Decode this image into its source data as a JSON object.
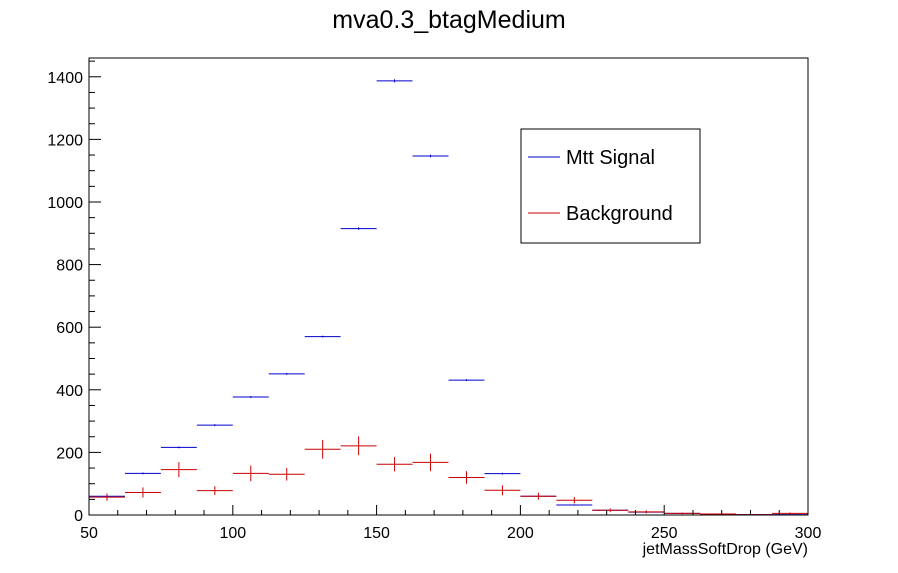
{
  "chart_data": {
    "type": "histogram",
    "title": "mva0.3_btagMedium",
    "xlabel": "jetMassSoftDrop (GeV)",
    "ylabel": "",
    "xlim": [
      50,
      300
    ],
    "ylim": [
      0,
      1460
    ],
    "x_ticks": [
      50,
      100,
      150,
      200,
      250,
      300
    ],
    "y_ticks": [
      0,
      200,
      400,
      600,
      800,
      1000,
      1200,
      1400
    ],
    "bin_width": 12.5,
    "bin_centers": [
      56.25,
      68.75,
      81.25,
      93.75,
      106.25,
      118.75,
      131.25,
      143.75,
      156.25,
      168.75,
      181.25,
      193.75,
      206.25,
      218.75,
      231.25,
      243.75,
      256.25,
      268.75,
      281.25,
      293.75
    ],
    "legend_position": "top-right",
    "grid": false,
    "series": [
      {
        "name": "Mtt Signal",
        "color": "#0000cc",
        "values": [
          60,
          133,
          216,
          287,
          377,
          451,
          570,
          915,
          1387,
          1147,
          431,
          132,
          60,
          32,
          15,
          9,
          5,
          3,
          1,
          1
        ],
        "errors": [
          2,
          3,
          3,
          3,
          3,
          3,
          3,
          4,
          5,
          4,
          3,
          3,
          2,
          2,
          1,
          1,
          1,
          1,
          1,
          1
        ]
      },
      {
        "name": "Background",
        "color": "#cc0000",
        "values": [
          57,
          72,
          145,
          78,
          133,
          130,
          210,
          221,
          162,
          168,
          120,
          79,
          60,
          47,
          15,
          10,
          5,
          3,
          1,
          5
        ],
        "errors": [
          12,
          16,
          24,
          14,
          25,
          20,
          30,
          30,
          23,
          28,
          20,
          16,
          11,
          10,
          6,
          5,
          3,
          2,
          1,
          3
        ]
      }
    ]
  }
}
